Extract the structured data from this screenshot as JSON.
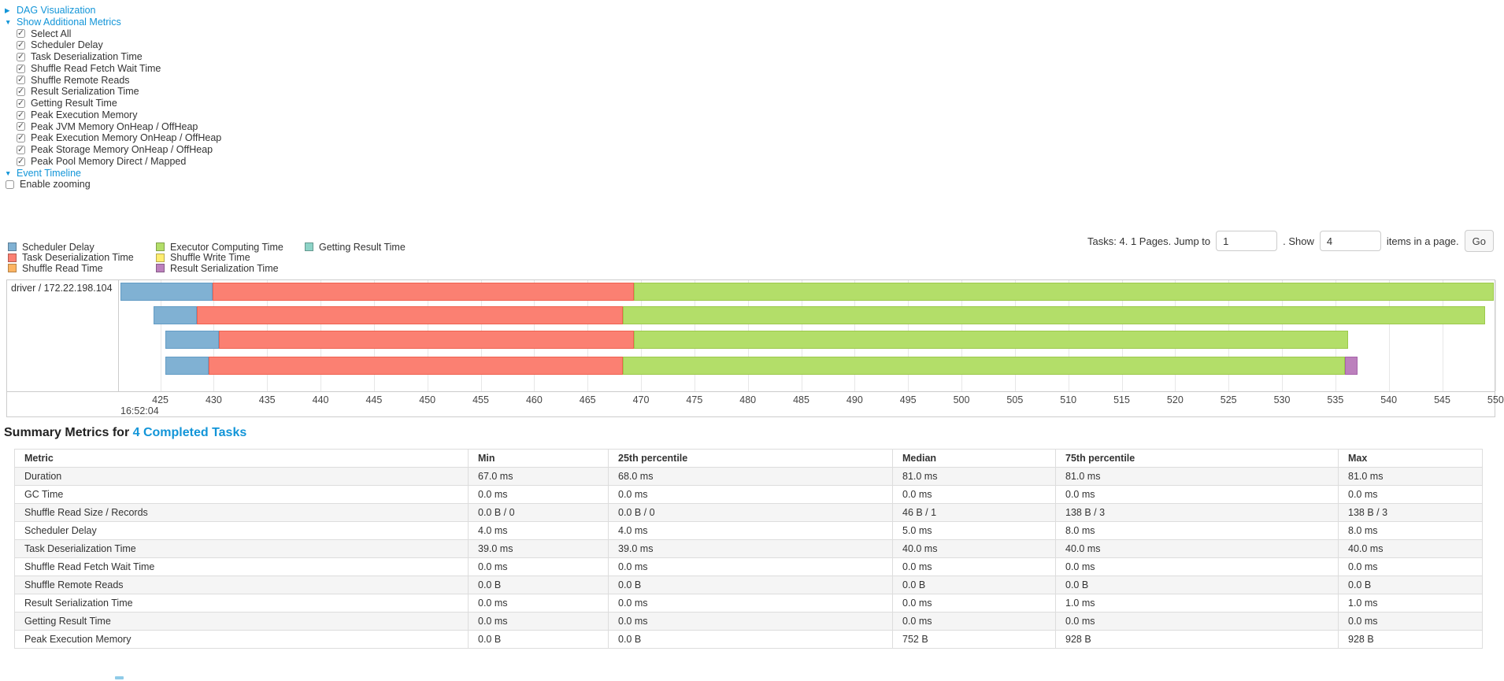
{
  "icons": {
    "collapsed_arrow": "▶",
    "expanded_arrow": "▼",
    "check": "✓"
  },
  "colors": {
    "link": "#1295d8",
    "grid": "#e7e7e7",
    "border": "#cccccc"
  },
  "controls": {
    "dag_label": "DAG Visualization",
    "metrics_label": "Show Additional Metrics",
    "metrics_items": [
      {
        "label": "Select All",
        "checked": true
      },
      {
        "label": "Scheduler Delay",
        "checked": true
      },
      {
        "label": "Task Deserialization Time",
        "checked": true
      },
      {
        "label": "Shuffle Read Fetch Wait Time",
        "checked": true
      },
      {
        "label": "Shuffle Remote Reads",
        "checked": true
      },
      {
        "label": "Result Serialization Time",
        "checked": true
      },
      {
        "label": "Getting Result Time",
        "checked": true
      },
      {
        "label": "Peak Execution Memory",
        "checked": true
      },
      {
        "label": "Peak JVM Memory OnHeap / OffHeap",
        "checked": true
      },
      {
        "label": "Peak Execution Memory OnHeap / OffHeap",
        "checked": true
      },
      {
        "label": "Peak Storage Memory OnHeap / OffHeap",
        "checked": true
      },
      {
        "label": "Peak Pool Memory Direct / Mapped",
        "checked": true
      }
    ],
    "event_timeline_label": "Event Timeline",
    "enable_zooming": {
      "label": "Enable zooming",
      "checked": false
    }
  },
  "pagination": {
    "prefix": "Tasks: 4. 1 Pages. Jump to",
    "jump_value": "1",
    "mid": ". Show",
    "show_value": "4",
    "suffix": "items in a page.",
    "go_label": "Go"
  },
  "chart_data": {
    "type": "timeline",
    "row_label": "driver / 172.22.198.104",
    "palette": {
      "scheduler_delay": {
        "fill": "#80B1D3",
        "border": "#639cc5"
      },
      "deserialization": {
        "fill": "#FB8072",
        "border": "#ef614f"
      },
      "shuffle_read": {
        "fill": "#FDB462",
        "border": "#eb9c40"
      },
      "executor": {
        "fill": "#B3DE69",
        "border": "#9cc94b"
      },
      "shuffle_write": {
        "fill": "#FFED6F",
        "border": "#e8d54e"
      },
      "serialization": {
        "fill": "#BC80BD",
        "border": "#a763a9"
      },
      "getting_result": {
        "fill": "#8DD3C7",
        "border": "#6fbcae"
      }
    },
    "legend": [
      [
        {
          "key": "scheduler_delay",
          "label": "Scheduler Delay"
        },
        {
          "key": "deserialization",
          "label": "Task Deserialization Time"
        },
        {
          "key": "shuffle_read",
          "label": "Shuffle Read Time"
        }
      ],
      [
        {
          "key": "executor",
          "label": "Executor Computing Time"
        },
        {
          "key": "shuffle_write",
          "label": "Shuffle Write Time"
        },
        {
          "key": "serialization",
          "label": "Result Serialization Time"
        }
      ],
      [
        {
          "key": "getting_result",
          "label": "Getting Result Time"
        }
      ]
    ],
    "axis": {
      "min": 421.2,
      "max": 549.9,
      "ticks": [
        425,
        430,
        435,
        440,
        445,
        450,
        455,
        460,
        465,
        470,
        475,
        480,
        485,
        490,
        495,
        500,
        505,
        510,
        515,
        520,
        525,
        530,
        535,
        540,
        545,
        550
      ],
      "start_time_label": "16:52:04"
    },
    "tasks": [
      {
        "segments": [
          {
            "key": "scheduler_delay",
            "start": 421.3,
            "end": 429.9
          },
          {
            "key": "deserialization",
            "start": 429.9,
            "end": 469.3
          },
          {
            "key": "executor",
            "start": 469.3,
            "end": 549.8
          }
        ]
      },
      {
        "segments": [
          {
            "key": "scheduler_delay",
            "start": 424.4,
            "end": 428.4
          },
          {
            "key": "deserialization",
            "start": 428.4,
            "end": 468.3
          },
          {
            "key": "executor",
            "start": 468.3,
            "end": 549.0
          }
        ]
      },
      {
        "segments": [
          {
            "key": "scheduler_delay",
            "start": 425.5,
            "end": 430.5
          },
          {
            "key": "deserialization",
            "start": 430.5,
            "end": 469.3
          },
          {
            "key": "executor",
            "start": 469.3,
            "end": 536.2
          }
        ]
      },
      {
        "segments": [
          {
            "key": "scheduler_delay",
            "start": 425.5,
            "end": 429.5
          },
          {
            "key": "deserialization",
            "start": 429.5,
            "end": 468.3
          },
          {
            "key": "executor",
            "start": 468.3,
            "end": 535.9
          },
          {
            "key": "serialization",
            "start": 535.9,
            "end": 537.1
          }
        ]
      }
    ]
  },
  "summary": {
    "title_prefix": "Summary Metrics for ",
    "title_link": "4 Completed Tasks",
    "table": {
      "headers": [
        "Metric",
        "Min",
        "25th percentile",
        "Median",
        "75th percentile",
        "Max"
      ],
      "rows": [
        [
          "Duration",
          "67.0 ms",
          "68.0 ms",
          "81.0 ms",
          "81.0 ms",
          "81.0 ms"
        ],
        [
          "GC Time",
          "0.0 ms",
          "0.0 ms",
          "0.0 ms",
          "0.0 ms",
          "0.0 ms"
        ],
        [
          "Shuffle Read Size / Records",
          "0.0 B / 0",
          "0.0 B / 0",
          "46 B / 1",
          "138 B / 3",
          "138 B / 3"
        ],
        [
          "Scheduler Delay",
          "4.0 ms",
          "4.0 ms",
          "5.0 ms",
          "8.0 ms",
          "8.0 ms"
        ],
        [
          "Task Deserialization Time",
          "39.0 ms",
          "39.0 ms",
          "40.0 ms",
          "40.0 ms",
          "40.0 ms"
        ],
        [
          "Shuffle Read Fetch Wait Time",
          "0.0 ms",
          "0.0 ms",
          "0.0 ms",
          "0.0 ms",
          "0.0 ms"
        ],
        [
          "Shuffle Remote Reads",
          "0.0 B",
          "0.0 B",
          "0.0 B",
          "0.0 B",
          "0.0 B"
        ],
        [
          "Result Serialization Time",
          "0.0 ms",
          "0.0 ms",
          "0.0 ms",
          "1.0 ms",
          "1.0 ms"
        ],
        [
          "Getting Result Time",
          "0.0 ms",
          "0.0 ms",
          "0.0 ms",
          "0.0 ms",
          "0.0 ms"
        ],
        [
          "Peak Execution Memory",
          "0.0 B",
          "0.0 B",
          "752 B",
          "928 B",
          "928 B"
        ]
      ]
    }
  }
}
